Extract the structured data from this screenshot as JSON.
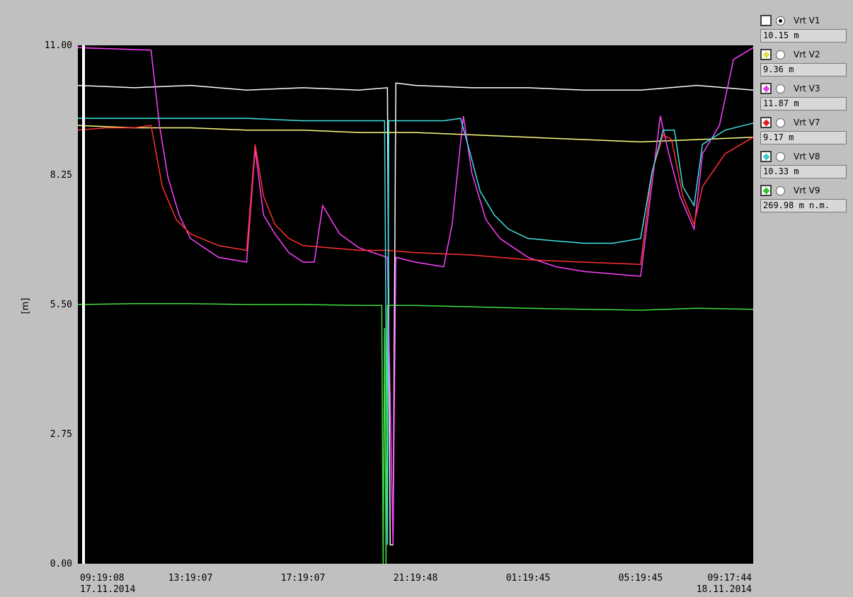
{
  "chart_data": {
    "type": "line",
    "ylabel": "[m]",
    "ylim": [
      0,
      11
    ],
    "yticks": [
      "11.00",
      "8.25",
      "5.50",
      "2.75",
      "0.00"
    ],
    "xlim": [
      0,
      24
    ],
    "xticks": [
      {
        "pos": 0,
        "time": "09:19:08",
        "date": "17.11.2014"
      },
      {
        "pos": 4,
        "time": "13:19:07",
        "date": ""
      },
      {
        "pos": 8,
        "time": "17:19:07",
        "date": ""
      },
      {
        "pos": 12,
        "time": "21:19:48",
        "date": ""
      },
      {
        "pos": 16,
        "time": "01:19:45",
        "date": ""
      },
      {
        "pos": 20,
        "time": "05:19:45",
        "date": ""
      },
      {
        "pos": 24,
        "time": "09:17:44",
        "date": "18.11.2014"
      }
    ],
    "series": [
      {
        "name": "Vrt V1",
        "color": "#ffffff",
        "x": [
          0,
          2,
          4,
          6,
          8,
          10,
          11.0,
          11.1,
          11.2,
          11.3,
          12,
          14,
          16,
          18,
          20,
          22,
          24
        ],
        "y": [
          10.15,
          10.1,
          10.15,
          10.05,
          10.1,
          10.05,
          10.1,
          0.4,
          0.4,
          10.2,
          10.15,
          10.1,
          10.1,
          10.05,
          10.05,
          10.15,
          10.05
        ]
      },
      {
        "name": "Vrt V2",
        "color": "#ffff80",
        "x": [
          0,
          2,
          4,
          6,
          8,
          10,
          12,
          14,
          16,
          18,
          20,
          22,
          24
        ],
        "y": [
          9.3,
          9.25,
          9.25,
          9.2,
          9.2,
          9.15,
          9.15,
          9.1,
          9.05,
          9.0,
          8.95,
          9.0,
          9.05
        ]
      },
      {
        "name": "Vrt V3",
        "color": "#ff40ff",
        "x": [
          0,
          2.6,
          2.9,
          3.2,
          3.6,
          4.0,
          5.0,
          6.0,
          6.3,
          6.6,
          7.0,
          7.5,
          8.0,
          8.4,
          8.7,
          9.3,
          10.0,
          11.0,
          11.2,
          11.3,
          12.0,
          13.0,
          13.3,
          13.7,
          14.0,
          14.5,
          15.0,
          16.0,
          17.0,
          18.0,
          19.0,
          20.0,
          20.7,
          21.0,
          21.4,
          21.9,
          22.2,
          22.8,
          23.3,
          24.0
        ],
        "y": [
          10.95,
          10.9,
          9.3,
          8.2,
          7.4,
          6.9,
          6.5,
          6.4,
          8.8,
          7.4,
          7.0,
          6.6,
          6.4,
          6.4,
          7.6,
          7.0,
          6.7,
          6.5,
          0.4,
          6.5,
          6.4,
          6.3,
          7.2,
          9.5,
          8.3,
          7.3,
          6.9,
          6.5,
          6.3,
          6.2,
          6.15,
          6.1,
          9.5,
          8.7,
          7.8,
          7.1,
          8.7,
          9.3,
          10.7,
          10.95
        ]
      },
      {
        "name": "Vrt V7",
        "color": "#ff3030",
        "x": [
          0,
          1,
          2,
          2.6,
          3.0,
          3.5,
          4.0,
          5.0,
          6.0,
          6.3,
          6.6,
          7.0,
          7.5,
          8.0,
          9.0,
          10.0,
          11.0,
          12.0,
          14.0,
          16.0,
          18.0,
          20.0,
          20.4,
          20.8,
          21.1,
          21.5,
          21.9,
          22.2,
          23.0,
          24.0
        ],
        "y": [
          9.2,
          9.25,
          9.25,
          9.3,
          8.0,
          7.3,
          7.0,
          6.75,
          6.65,
          8.9,
          7.8,
          7.2,
          6.9,
          6.75,
          6.7,
          6.65,
          6.65,
          6.6,
          6.55,
          6.45,
          6.4,
          6.35,
          8.3,
          9.1,
          9.0,
          7.8,
          7.2,
          8.0,
          8.7,
          9.05
        ]
      },
      {
        "name": "Vrt V8",
        "color": "#40e0e0",
        "x": [
          0,
          2,
          4,
          6,
          8,
          10,
          10.9,
          11.0,
          11.05,
          11.3,
          12.0,
          13.0,
          13.6,
          13.9,
          14.3,
          14.8,
          15.3,
          16.0,
          17.0,
          18.0,
          19.0,
          20.0,
          20.4,
          20.8,
          21.2,
          21.5,
          21.9,
          22.2,
          23.0,
          24.0
        ],
        "y": [
          9.45,
          9.45,
          9.45,
          9.45,
          9.4,
          9.4,
          9.4,
          0.4,
          9.4,
          9.4,
          9.4,
          9.4,
          9.45,
          8.8,
          7.9,
          7.4,
          7.1,
          6.9,
          6.85,
          6.8,
          6.8,
          6.9,
          8.3,
          9.2,
          9.2,
          8.0,
          7.6,
          8.9,
          9.2,
          9.35
        ]
      },
      {
        "name": "Vrt V9",
        "color": "#40e040",
        "x": [
          0,
          2,
          4,
          6,
          8,
          10,
          10.8,
          10.85,
          10.9,
          10.95,
          11.0,
          12,
          14,
          16,
          18,
          20,
          22,
          24
        ],
        "y": [
          5.5,
          5.52,
          5.52,
          5.5,
          5.5,
          5.48,
          5.48,
          0.0,
          5.0,
          0.0,
          5.48,
          5.48,
          5.45,
          5.42,
          5.4,
          5.38,
          5.42,
          5.4
        ]
      }
    ]
  },
  "legend": {
    "items": [
      {
        "name": "Vrt V1",
        "value": "10.15 m",
        "color": "#ffffff",
        "selected": true
      },
      {
        "name": "Vrt V2",
        "value": "9.36 m",
        "color": "#e0e040",
        "selected": false
      },
      {
        "name": "Vrt V3",
        "value": "11.87 m",
        "color": "#e040e0",
        "selected": false
      },
      {
        "name": "Vrt V7",
        "value": "9.17 m",
        "color": "#e02020",
        "selected": false
      },
      {
        "name": "Vrt V8",
        "value": "10.33 m",
        "color": "#40c8c8",
        "selected": false
      },
      {
        "name": "Vrt V9",
        "value": "269.98 m n.m.",
        "color": "#30c030",
        "selected": false
      }
    ]
  }
}
